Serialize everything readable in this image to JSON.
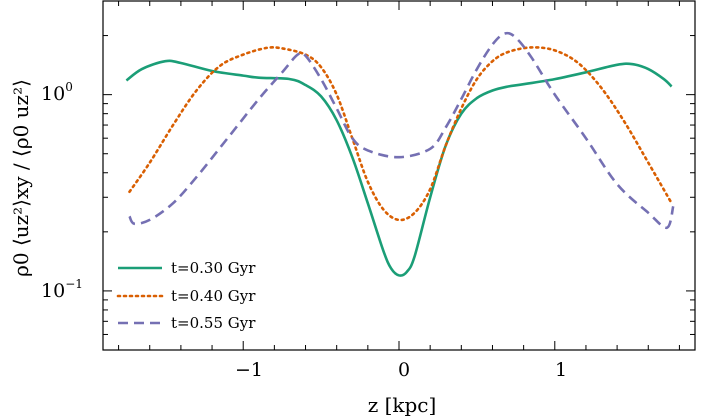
{
  "chart_data": {
    "type": "line",
    "xlabel": "z [kpc]",
    "ylabel": "ρ0 ⟨uz²⟩xy / ⟨ρ0 uz²⟩",
    "xlim": [
      -1.9,
      1.9
    ],
    "ylim": [
      0.05,
      3.0
    ],
    "yscale": "log",
    "x_ticks": [
      -1,
      0,
      1
    ],
    "x_tick_labels": [
      "−1",
      "0",
      "1"
    ],
    "y_ticks": [
      0.1,
      1.0
    ],
    "y_tick_labels": [
      {
        "base": "10",
        "exp": "−1"
      },
      {
        "base": "10",
        "exp": "0"
      }
    ],
    "legend_position": "lower-left",
    "grid": false,
    "series": [
      {
        "name": "t=0.30 Gyr",
        "color": "#1b9e77",
        "style": "solid",
        "points": [
          [
            -1.75,
            1.18
          ],
          [
            -1.65,
            1.35
          ],
          [
            -1.5,
            1.48
          ],
          [
            -1.4,
            1.45
          ],
          [
            -1.2,
            1.32
          ],
          [
            -1.0,
            1.25
          ],
          [
            -0.9,
            1.22
          ],
          [
            -0.7,
            1.2
          ],
          [
            -0.6,
            1.12
          ],
          [
            -0.5,
            0.98
          ],
          [
            -0.4,
            0.74
          ],
          [
            -0.3,
            0.48
          ],
          [
            -0.2,
            0.28
          ],
          [
            -0.1,
            0.16
          ],
          [
            -0.05,
            0.13
          ],
          [
            0.0,
            0.12
          ],
          [
            0.05,
            0.125
          ],
          [
            0.1,
            0.15
          ],
          [
            0.2,
            0.3
          ],
          [
            0.3,
            0.55
          ],
          [
            0.4,
            0.8
          ],
          [
            0.5,
            0.96
          ],
          [
            0.6,
            1.05
          ],
          [
            0.7,
            1.1
          ],
          [
            0.8,
            1.13
          ],
          [
            1.0,
            1.2
          ],
          [
            1.2,
            1.3
          ],
          [
            1.4,
            1.42
          ],
          [
            1.5,
            1.43
          ],
          [
            1.6,
            1.35
          ],
          [
            1.7,
            1.2
          ],
          [
            1.75,
            1.1
          ]
        ]
      },
      {
        "name": "t=0.40 Gyr",
        "color": "#d95f02",
        "style": "dotted",
        "points": [
          [
            -1.73,
            0.32
          ],
          [
            -1.6,
            0.45
          ],
          [
            -1.45,
            0.7
          ],
          [
            -1.3,
            1.05
          ],
          [
            -1.15,
            1.4
          ],
          [
            -1.0,
            1.6
          ],
          [
            -0.85,
            1.73
          ],
          [
            -0.75,
            1.72
          ],
          [
            -0.6,
            1.6
          ],
          [
            -0.5,
            1.38
          ],
          [
            -0.4,
            1.0
          ],
          [
            -0.3,
            0.6
          ],
          [
            -0.2,
            0.36
          ],
          [
            -0.1,
            0.26
          ],
          [
            0.0,
            0.23
          ],
          [
            0.1,
            0.25
          ],
          [
            0.2,
            0.33
          ],
          [
            0.3,
            0.55
          ],
          [
            0.4,
            0.85
          ],
          [
            0.5,
            1.2
          ],
          [
            0.6,
            1.48
          ],
          [
            0.7,
            1.65
          ],
          [
            0.85,
            1.74
          ],
          [
            1.0,
            1.68
          ],
          [
            1.15,
            1.45
          ],
          [
            1.3,
            1.08
          ],
          [
            1.45,
            0.72
          ],
          [
            1.6,
            0.45
          ],
          [
            1.75,
            0.28
          ]
        ]
      },
      {
        "name": "t=0.55 Gyr",
        "color": "#7570b3",
        "style": "dashed",
        "points": [
          [
            -1.73,
            0.24
          ],
          [
            -1.7,
            0.22
          ],
          [
            -1.6,
            0.23
          ],
          [
            -1.45,
            0.28
          ],
          [
            -1.3,
            0.38
          ],
          [
            -1.1,
            0.6
          ],
          [
            -0.9,
            0.95
          ],
          [
            -0.75,
            1.3
          ],
          [
            -0.65,
            1.6
          ],
          [
            -0.6,
            1.58
          ],
          [
            -0.5,
            1.2
          ],
          [
            -0.4,
            0.85
          ],
          [
            -0.3,
            0.6
          ],
          [
            -0.2,
            0.52
          ],
          [
            0.0,
            0.48
          ],
          [
            0.2,
            0.53
          ],
          [
            0.3,
            0.68
          ],
          [
            0.4,
            0.95
          ],
          [
            0.5,
            1.35
          ],
          [
            0.6,
            1.8
          ],
          [
            0.68,
            2.05
          ],
          [
            0.75,
            1.95
          ],
          [
            0.85,
            1.55
          ],
          [
            1.0,
            1.0
          ],
          [
            1.2,
            0.6
          ],
          [
            1.4,
            0.35
          ],
          [
            1.6,
            0.25
          ],
          [
            1.72,
            0.21
          ],
          [
            1.76,
            0.27
          ]
        ]
      }
    ]
  }
}
